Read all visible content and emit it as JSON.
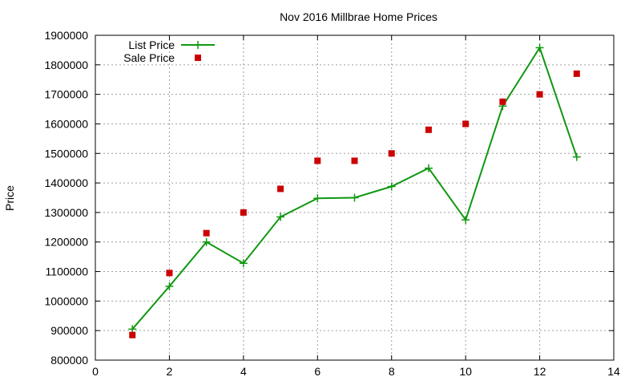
{
  "chart_data": {
    "type": "line",
    "title": "Nov 2016 Millbrae Home Prices",
    "xlabel": "",
    "ylabel": "Price",
    "xlim": [
      0,
      14
    ],
    "ylim": [
      800000,
      1900000
    ],
    "xticks": [
      0,
      2,
      4,
      6,
      8,
      10,
      12,
      14
    ],
    "yticks": [
      800000,
      900000,
      1000000,
      1100000,
      1200000,
      1300000,
      1400000,
      1500000,
      1600000,
      1700000,
      1800000,
      1900000
    ],
    "grid": true,
    "legend_position": "top-left",
    "series": [
      {
        "name": "List Price",
        "style": "linespoints",
        "marker": "plus",
        "color": "#109810",
        "x": [
          1,
          2,
          3,
          4,
          5,
          6,
          7,
          8,
          9,
          10,
          11,
          12,
          13
        ],
        "y": [
          905000,
          1050000,
          1200000,
          1128000,
          1285000,
          1348000,
          1350000,
          1388000,
          1450000,
          1275000,
          1660000,
          1858000,
          1488000
        ]
      },
      {
        "name": "Sale Price",
        "style": "points",
        "marker": "square",
        "color": "#cc0000",
        "x": [
          1,
          2,
          3,
          4,
          5,
          6,
          7,
          8,
          9,
          10,
          11,
          12,
          13
        ],
        "y": [
          885000,
          1095000,
          1230000,
          1300000,
          1380000,
          1475000,
          1475000,
          1500000,
          1580000,
          1600000,
          1675000,
          1700000,
          1770000
        ]
      }
    ]
  }
}
